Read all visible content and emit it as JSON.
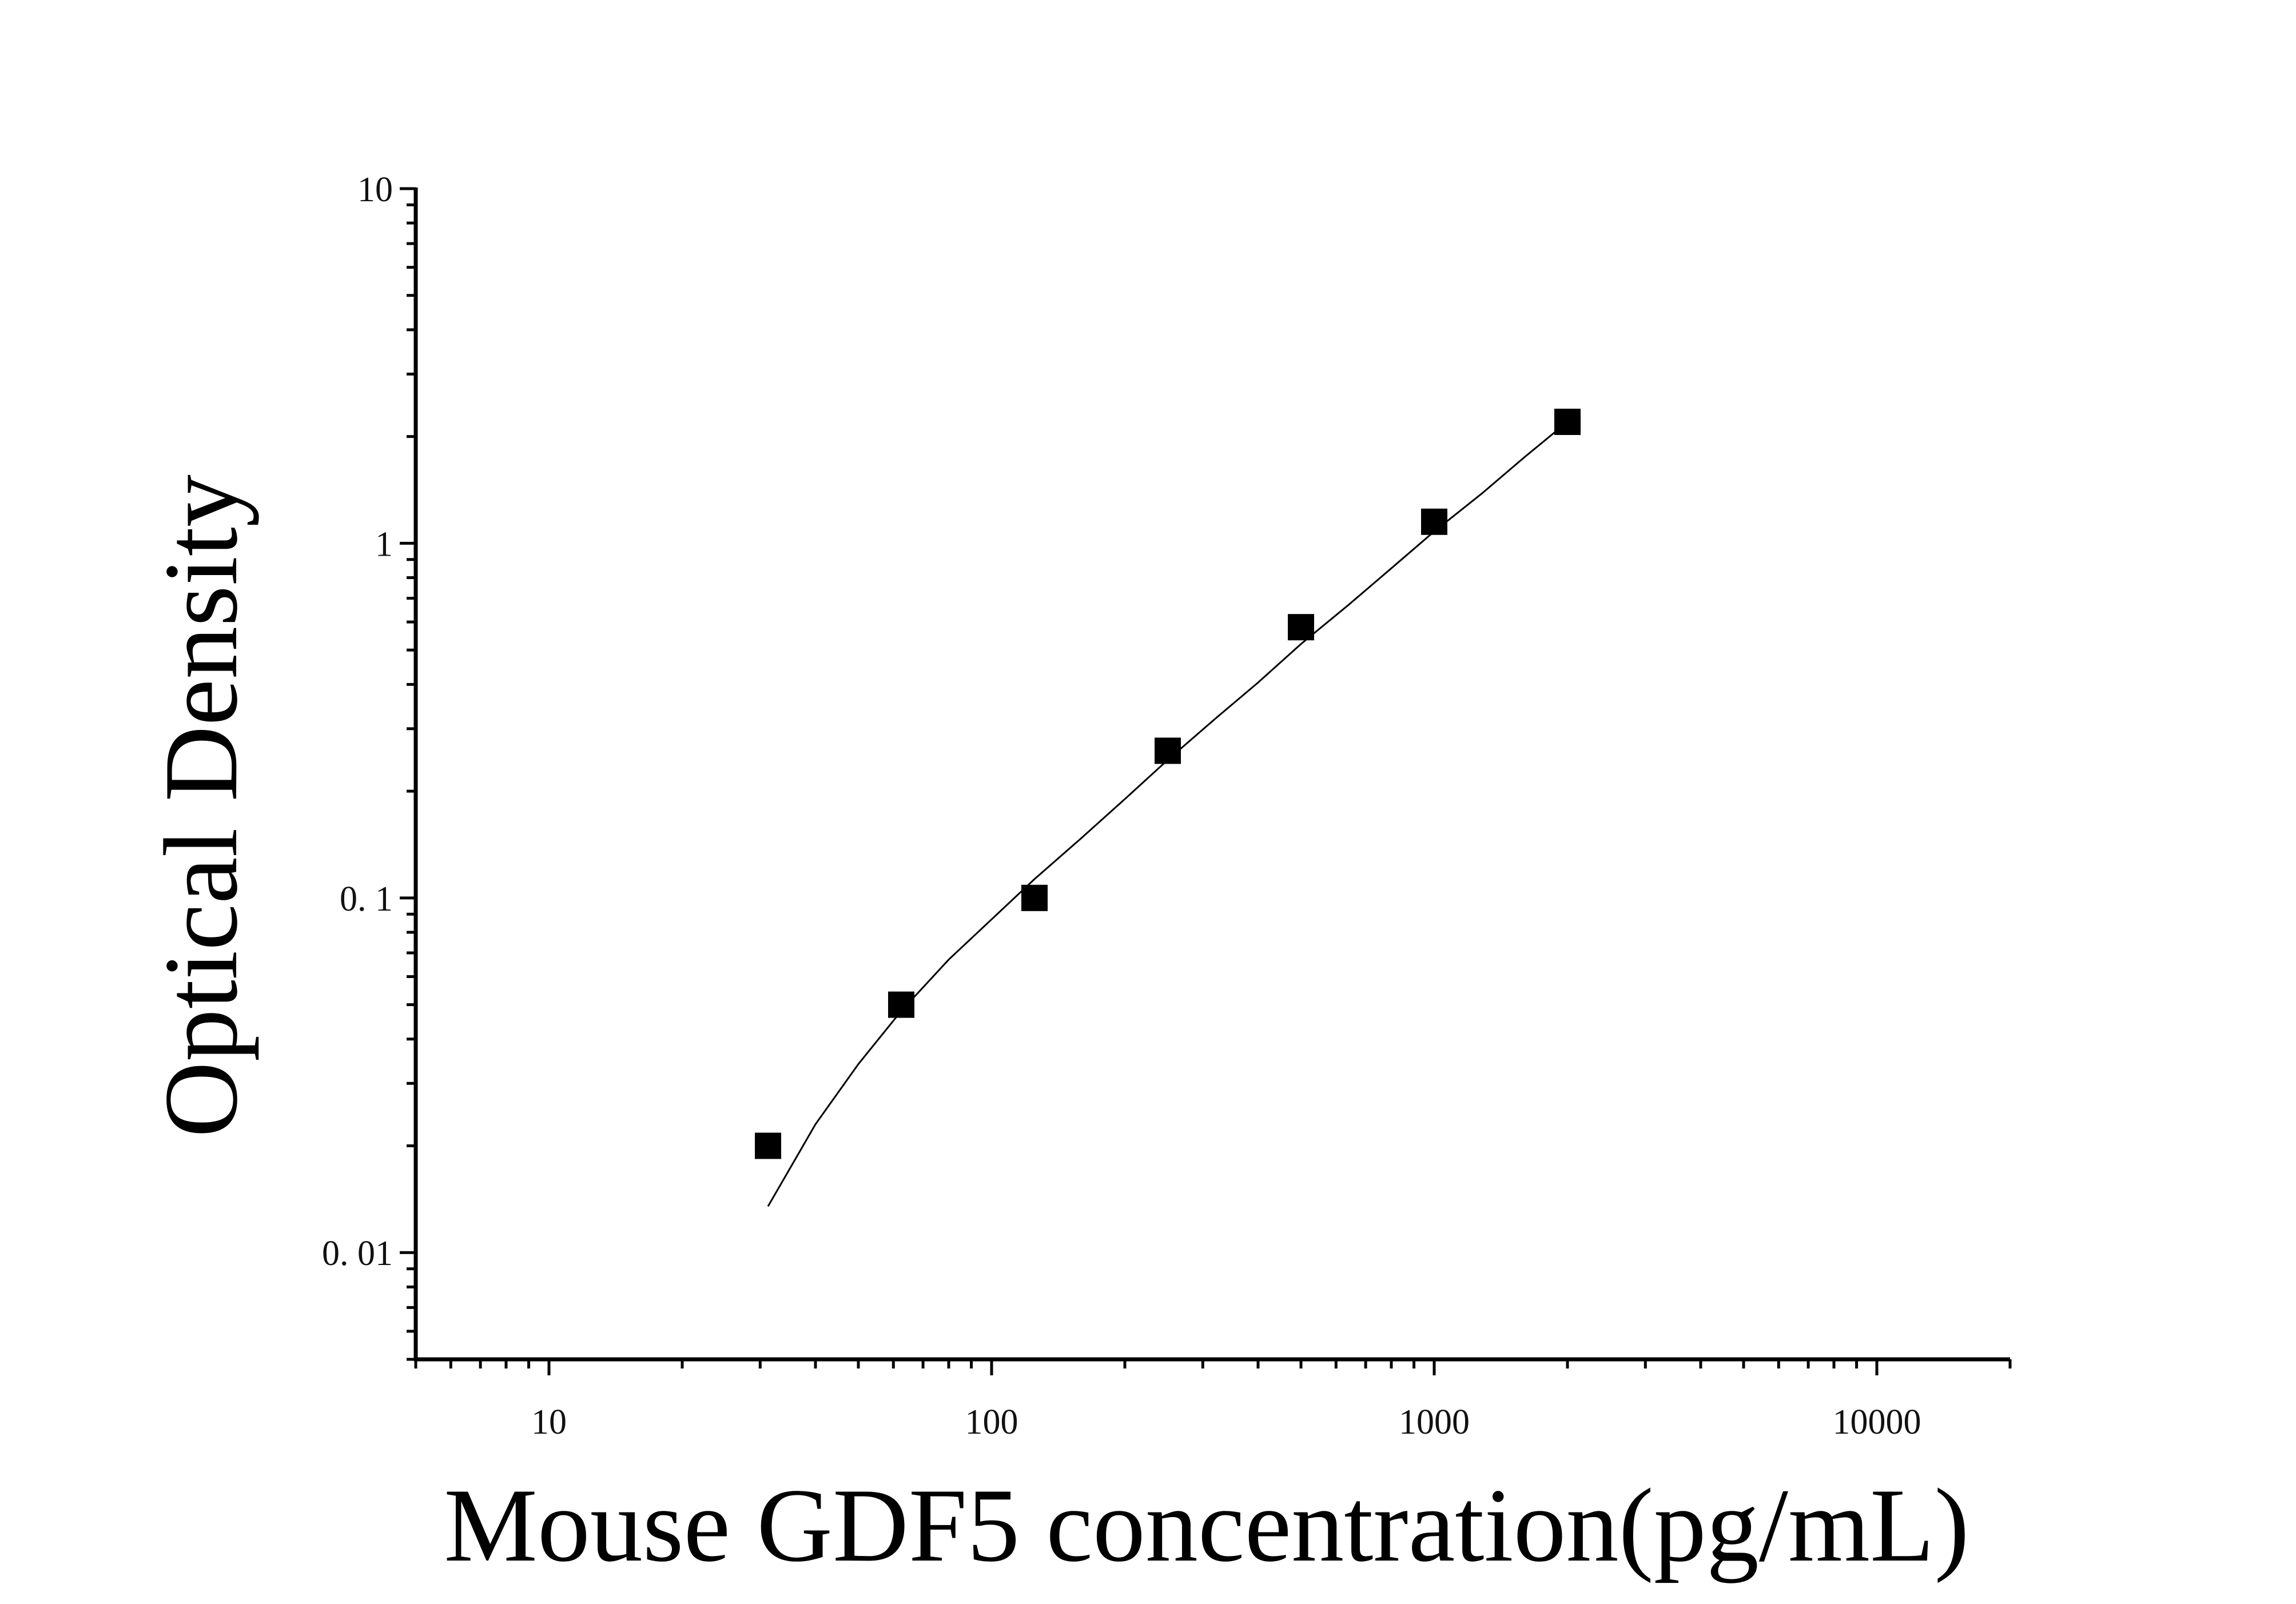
{
  "chart_data": {
    "type": "scatter",
    "title": "",
    "xlabel": "Mouse GDF5 concentration(pg/mL)",
    "ylabel": "Optical Density",
    "x_scale": "log",
    "y_scale": "log",
    "xlim": [
      5,
      20000
    ],
    "ylim": [
      0.005,
      10
    ],
    "x_ticks": [
      {
        "value": 10,
        "label": "10"
      },
      {
        "value": 100,
        "label": "100"
      },
      {
        "value": 1000,
        "label": "1000"
      },
      {
        "value": 10000,
        "label": "10000"
      }
    ],
    "y_ticks": [
      {
        "value": 0.01,
        "label": "0. 01"
      },
      {
        "value": 0.1,
        "label": "0. 1"
      },
      {
        "value": 1,
        "label": "1"
      },
      {
        "value": 10,
        "label": "10"
      }
    ],
    "grid": false,
    "legend": "none",
    "series": [
      {
        "marker": "square",
        "color": "#000000",
        "x": [
          31.25,
          62.5,
          125,
          250,
          500,
          1000,
          2000
        ],
        "y": [
          0.02,
          0.05,
          0.1,
          0.26,
          0.58,
          1.15,
          2.2
        ]
      }
    ],
    "fit_curve": {
      "color": "#000000",
      "x": [
        31.25,
        40,
        50,
        62.5,
        80,
        100,
        125,
        160,
        200,
        250,
        320,
        400,
        500,
        640,
        800,
        1000,
        1280,
        1600,
        2000
      ],
      "y": [
        0.0135,
        0.023,
        0.034,
        0.048,
        0.067,
        0.087,
        0.113,
        0.148,
        0.19,
        0.245,
        0.32,
        0.405,
        0.52,
        0.67,
        0.85,
        1.08,
        1.38,
        1.75,
        2.2
      ]
    }
  }
}
